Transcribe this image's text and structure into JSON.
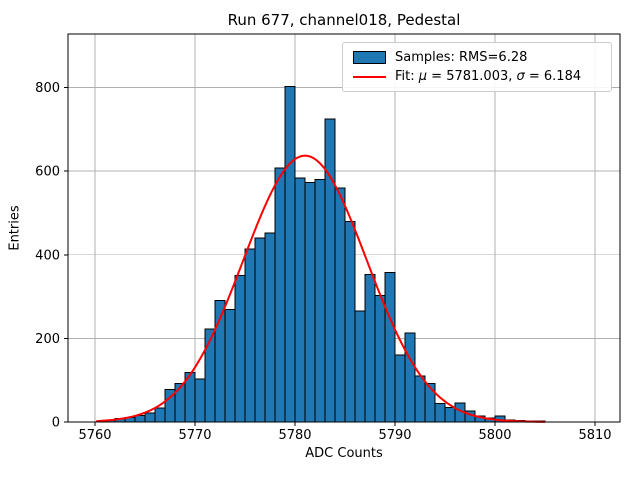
{
  "title": "Run 677, channel018, Pedestal",
  "axes": {
    "xlabel": "ADC Counts",
    "ylabel": "Entries"
  },
  "legend": {
    "samples_label": "Samples: RMS=6.28",
    "fit_prefix": "Fit: ",
    "fit_mu_symbol": "μ",
    "fit_mu_value": " = 5781.003, ",
    "fit_sigma_symbol": "σ",
    "fit_sigma_value": " = 6.184"
  },
  "colors": {
    "bar_fill": "#1f77b4",
    "bar_edge": "#000000",
    "fit_line": "#ff0000",
    "grid": "#b0b0b0",
    "spine": "#000000"
  },
  "chart_data": {
    "type": "bar",
    "title": "Run 677, channel018, Pedestal",
    "xlabel": "ADC Counts",
    "ylabel": "Entries",
    "grid": true,
    "legend_position": "upper right",
    "xlim": [
      5757.3,
      5812.5
    ],
    "ylim": [
      0,
      928
    ],
    "xticks": [
      5760,
      5770,
      5780,
      5790,
      5800,
      5810
    ],
    "yticks": [
      0,
      200,
      400,
      600,
      800
    ],
    "bin_width": 1,
    "bin_left_edges": [
      5761,
      5762,
      5763,
      5764,
      5765,
      5766,
      5767,
      5768,
      5769,
      5770,
      5771,
      5772,
      5773,
      5774,
      5775,
      5776,
      5777,
      5778,
      5779,
      5780,
      5781,
      5782,
      5783,
      5784,
      5785,
      5786,
      5787,
      5788,
      5789,
      5790,
      5791,
      5792,
      5793,
      5794,
      5795,
      5796,
      5797,
      5798,
      5799,
      5800,
      5801,
      5802,
      5803,
      5804
    ],
    "counts": [
      4,
      8,
      11,
      16,
      21,
      33,
      78,
      92,
      118,
      103,
      222,
      291,
      269,
      350,
      414,
      440,
      452,
      607,
      802,
      584,
      573,
      580,
      725,
      560,
      480,
      265,
      353,
      303,
      357,
      160,
      213,
      110,
      92,
      44,
      35,
      45,
      26,
      14,
      10,
      14,
      5,
      4,
      2,
      2
    ],
    "rms": 6.28,
    "fit": {
      "type": "gaussian",
      "mu": 5781.003,
      "sigma": 6.184,
      "amplitude": 637,
      "x_start": 5760.2,
      "x_end": 5805.0
    }
  }
}
